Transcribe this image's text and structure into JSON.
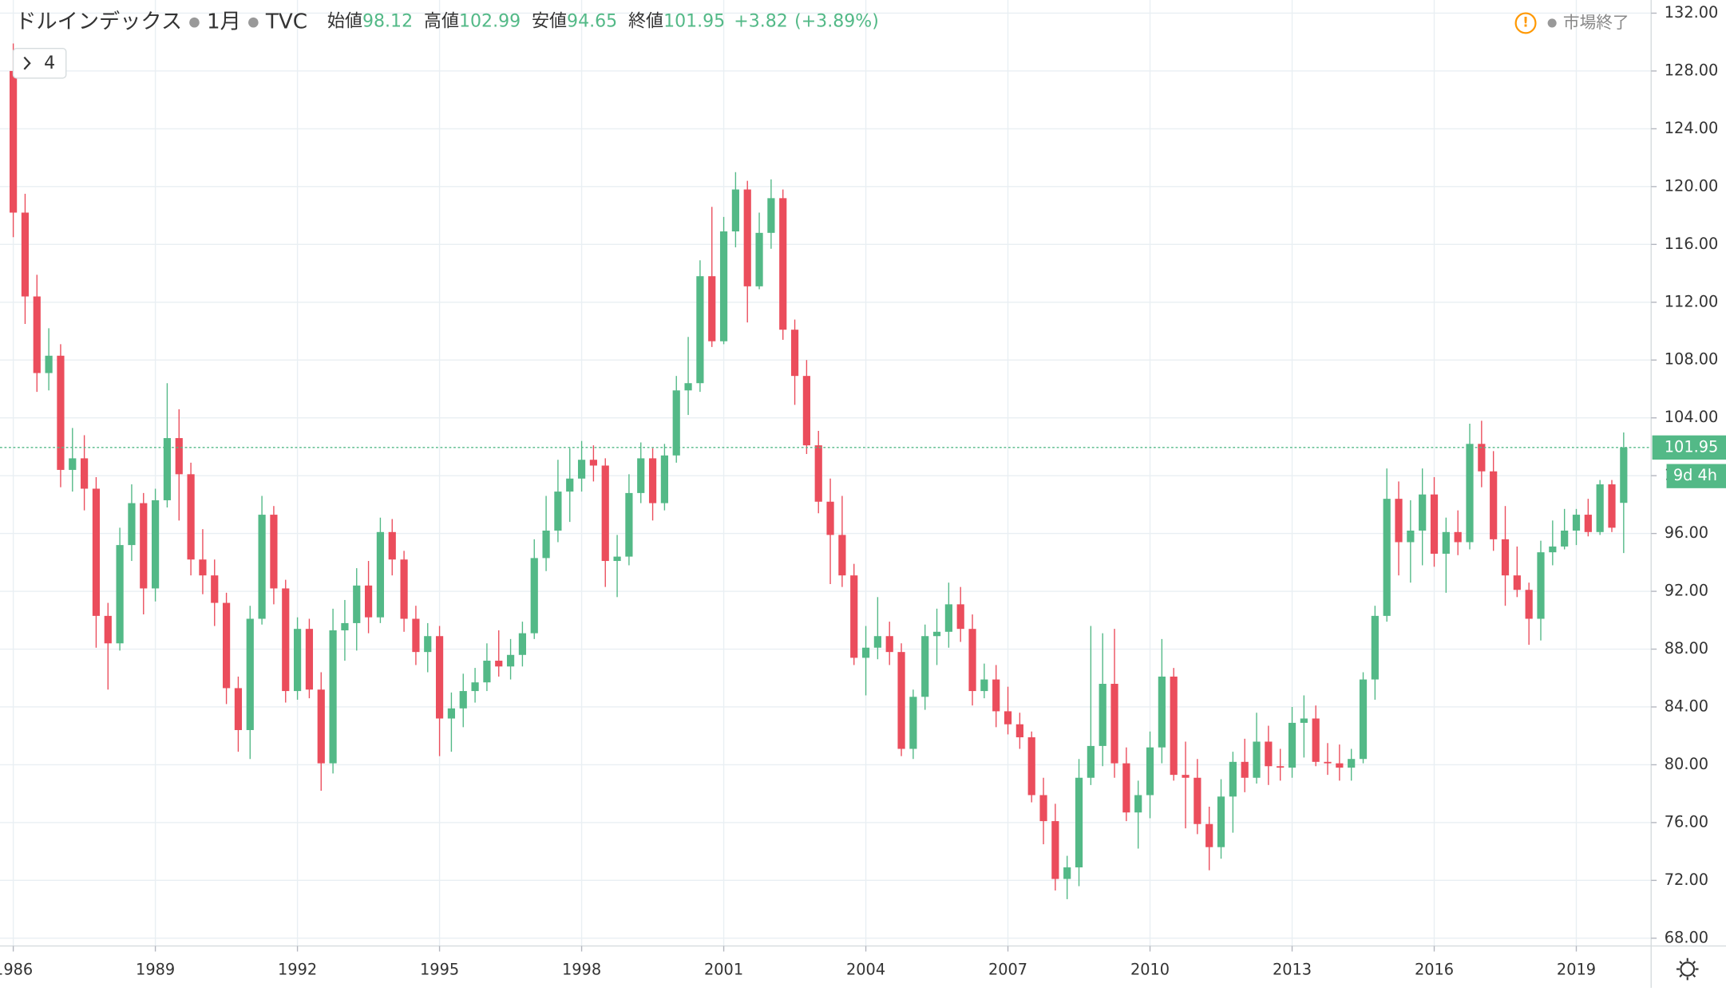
{
  "chart_data": {
    "type": "candlestick",
    "title": "ドルインデックス",
    "interval": "1月",
    "source": "TVC",
    "summary": [
      {
        "label": "始値",
        "value": 98.12
      },
      {
        "label": "高値",
        "value": 102.99
      },
      {
        "label": "安値",
        "value": 94.65
      },
      {
        "label": "終値",
        "value": 101.95
      }
    ],
    "change": "+3.82",
    "change_pct": "(+3.89%)",
    "status": "市場終了",
    "countdown": "9d 4h",
    "study_count": "4",
    "up_color": "#53b987",
    "down_color": "#eb4d5c",
    "grid": true,
    "xlim": [
      1985.72,
      2020.58
    ],
    "ylim": [
      67.46,
      132.91
    ],
    "xticks": [
      1986,
      1989,
      1992,
      1995,
      1998,
      2001,
      2004,
      2007,
      2010,
      2013,
      2016,
      2019
    ],
    "yticks": [
      {
        "value": 68,
        "label": "68.00"
      },
      {
        "value": 72,
        "label": "72.00"
      },
      {
        "value": 76,
        "label": "76.00"
      },
      {
        "value": 80,
        "label": "80.00"
      },
      {
        "value": 84,
        "label": "84.00"
      },
      {
        "value": 88,
        "label": "88.00"
      },
      {
        "value": 92,
        "label": "92.00"
      },
      {
        "value": 96,
        "label": "96.00"
      },
      {
        "value": 100,
        "label": "100.00"
      },
      {
        "value": 104,
        "label": "104.00"
      },
      {
        "value": 108,
        "label": "108.00"
      },
      {
        "value": 112,
        "label": "112.00"
      },
      {
        "value": 116,
        "label": "116.00"
      },
      {
        "value": 120,
        "label": "120.00"
      },
      {
        "value": 124,
        "label": "124.00"
      },
      {
        "value": 128,
        "label": "128.00"
      },
      {
        "value": 132,
        "label": "132.00"
      }
    ],
    "x": [
      1986,
      1986.25,
      1986.5,
      1986.75,
      1987,
      1987.25,
      1987.5,
      1987.75,
      1988,
      1988.25,
      1988.5,
      1988.75,
      1989,
      1989.25,
      1989.5,
      1989.75,
      1990,
      1990.25,
      1990.5,
      1990.75,
      1991,
      1991.25,
      1991.5,
      1991.75,
      1992,
      1992.25,
      1992.5,
      1992.75,
      1993,
      1993.25,
      1993.5,
      1993.75,
      1994,
      1994.25,
      1994.5,
      1994.75,
      1995,
      1995.25,
      1995.5,
      1995.75,
      1996,
      1996.25,
      1996.5,
      1996.75,
      1997,
      1997.25,
      1997.5,
      1997.75,
      1998,
      1998.25,
      1998.5,
      1998.75,
      1999,
      1999.25,
      1999.5,
      1999.75,
      2000,
      2000.25,
      2000.5,
      2000.75,
      2001,
      2001.25,
      2001.5,
      2001.75,
      2002,
      2002.25,
      2002.5,
      2002.75,
      2003,
      2003.25,
      2003.5,
      2003.75,
      2004,
      2004.25,
      2004.5,
      2004.75,
      2005,
      2005.25,
      2005.5,
      2005.75,
      2006,
      2006.25,
      2006.5,
      2006.75,
      2007,
      2007.25,
      2007.5,
      2007.75,
      2008,
      2008.25,
      2008.5,
      2008.75,
      2009,
      2009.25,
      2009.5,
      2009.75,
      2010,
      2010.25,
      2010.5,
      2010.75,
      2011,
      2011.25,
      2011.5,
      2011.75,
      2012,
      2012.25,
      2012.5,
      2012.75,
      2013,
      2013.25,
      2013.5,
      2013.75,
      2014,
      2014.25,
      2014.5,
      2014.75,
      2015,
      2015.25,
      2015.5,
      2015.75,
      2016,
      2016.25,
      2016.5,
      2016.75,
      2017,
      2017.25,
      2017.5,
      2017.75,
      2018,
      2018.25,
      2018.5,
      2018.75,
      2019,
      2019.25,
      2019.5,
      2019.75,
      2020
    ],
    "open": [
      128,
      118.2,
      112.4,
      107.1,
      108.3,
      100.4,
      101.2,
      99.1,
      90.3,
      88.4,
      95.2,
      98.1,
      92.2,
      98.3,
      102.6,
      100.1,
      94.2,
      93.1,
      91.2,
      85.3,
      82.4,
      90.1,
      97.3,
      92.2,
      85.1,
      89.4,
      85.2,
      80.1,
      89.3,
      89.8,
      92.4,
      90.2,
      96.1,
      94.2,
      90.1,
      87.8,
      88.9,
      83.2,
      83.9,
      85.1,
      85.7,
      87.2,
      86.8,
      87.6,
      89.1,
      94.3,
      96.2,
      98.9,
      99.8,
      101.1,
      100.7,
      94.1,
      94.4,
      98.8,
      101.2,
      98.1,
      101.4,
      105.9,
      106.4,
      113.8,
      109.3,
      116.9,
      119.8,
      113.1,
      116.8,
      119.2,
      110.1,
      106.9,
      102.1,
      98.2,
      95.9,
      93.1,
      87.4,
      88.1,
      88.9,
      87.8,
      81.1,
      84.7,
      88.9,
      89.2,
      91.1,
      89.4,
      85.1,
      85.9,
      83.7,
      82.8,
      81.9,
      77.9,
      76.1,
      72.1,
      72.9,
      79.1,
      81.3,
      85.6,
      80.1,
      76.7,
      77.9,
      81.2,
      86.1,
      79.3,
      79.1,
      75.9,
      74.3,
      77.8,
      80.2,
      79.1,
      81.6,
      79.9,
      79.8,
      82.9,
      83.2,
      80.2,
      80.1,
      79.8,
      80.4,
      85.9,
      90.3,
      98.4,
      95.4,
      96.2,
      98.7,
      94.6,
      96.1,
      95.4,
      102.2,
      100.3,
      95.6,
      93.1,
      92.1,
      90.1,
      94.7,
      95.1,
      96.2,
      97.3,
      96.1,
      99.4,
      98.12
    ],
    "high": [
      129.9,
      119.5,
      113.9,
      110.2,
      109.1,
      103.3,
      102.8,
      99.9,
      91.2,
      96.4,
      99.4,
      98.8,
      99.1,
      106.4,
      104.6,
      100.9,
      96.3,
      94.2,
      91.9,
      86.1,
      91.0,
      98.6,
      97.9,
      92.8,
      90.2,
      90.1,
      86.4,
      90.8,
      91.4,
      93.6,
      94.1,
      97.1,
      97.0,
      94.8,
      91.0,
      89.8,
      89.6,
      85.0,
      86.3,
      86.7,
      88.4,
      89.3,
      88.7,
      89.9,
      95.6,
      98.6,
      101.1,
      101.9,
      102.4,
      102.1,
      101.2,
      95.9,
      100.1,
      102.3,
      101.9,
      102.2,
      106.9,
      109.6,
      114.9,
      118.6,
      117.9,
      121.0,
      120.4,
      118.2,
      120.5,
      119.8,
      110.8,
      108.0,
      103.1,
      99.8,
      98.6,
      93.9,
      89.6,
      91.6,
      89.9,
      88.4,
      85.2,
      89.7,
      90.8,
      92.6,
      92.3,
      90.4,
      87.0,
      86.9,
      85.4,
      83.6,
      82.3,
      79.1,
      77.3,
      73.7,
      80.4,
      89.6,
      89.1,
      89.4,
      81.2,
      78.9,
      82.3,
      88.7,
      86.7,
      81.6,
      80.4,
      77.1,
      79.0,
      80.9,
      81.8,
      83.6,
      82.7,
      81.1,
      84.0,
      84.8,
      84.1,
      81.5,
      81.4,
      81.1,
      86.4,
      91.0,
      100.5,
      99.6,
      98.3,
      100.5,
      99.9,
      97.1,
      97.6,
      103.6,
      103.8,
      101.7,
      97.9,
      95.1,
      92.6,
      95.5,
      96.9,
      97.7,
      97.7,
      98.4,
      99.7,
      99.7,
      102.99
    ],
    "low": [
      116.5,
      110.5,
      105.8,
      105.9,
      99.2,
      98.9,
      97.6,
      88.1,
      85.2,
      87.9,
      94.1,
      90.4,
      91.3,
      97.8,
      96.9,
      93.1,
      91.8,
      89.6,
      84.2,
      80.9,
      80.4,
      89.7,
      91.1,
      84.3,
      84.5,
      84.6,
      78.2,
      79.4,
      87.2,
      87.9,
      89.1,
      89.8,
      93.1,
      89.2,
      86.9,
      86.4,
      80.6,
      80.9,
      82.6,
      84.3,
      85.1,
      86.1,
      85.9,
      86.8,
      88.7,
      93.4,
      95.4,
      96.8,
      98.9,
      99.6,
      92.3,
      91.6,
      93.8,
      98.1,
      96.9,
      97.6,
      100.9,
      104.2,
      105.8,
      108.9,
      109.1,
      115.8,
      110.6,
      112.9,
      115.7,
      109.4,
      104.9,
      101.5,
      97.4,
      92.5,
      92.3,
      86.9,
      84.8,
      87.3,
      86.9,
      80.6,
      80.4,
      83.8,
      86.9,
      88.1,
      88.5,
      84.1,
      84.6,
      82.6,
      82.1,
      81.1,
      77.4,
      74.5,
      71.3,
      70.7,
      71.6,
      78.6,
      79.9,
      79.1,
      76.1,
      74.2,
      76.3,
      80.1,
      78.9,
      75.6,
      75.2,
      72.7,
      73.5,
      75.3,
      78.1,
      78.7,
      78.6,
      78.9,
      79.1,
      80.5,
      79.9,
      79.3,
      78.9,
      78.9,
      80.1,
      84.5,
      89.9,
      93.1,
      92.6,
      93.8,
      93.7,
      91.9,
      94.5,
      94.9,
      99.2,
      94.8,
      91.0,
      91.6,
      88.3,
      88.6,
      93.8,
      94.9,
      95.2,
      95.8,
      95.9,
      96.1,
      94.65
    ],
    "close": [
      118.2,
      112.4,
      107.1,
      108.3,
      100.4,
      101.2,
      99.1,
      90.3,
      88.4,
      95.2,
      98.1,
      92.2,
      98.3,
      102.6,
      100.1,
      94.2,
      93.1,
      91.2,
      85.3,
      82.4,
      90.1,
      97.3,
      92.2,
      85.1,
      89.4,
      85.2,
      80.1,
      89.3,
      89.8,
      92.4,
      90.2,
      96.1,
      94.2,
      90.1,
      87.8,
      88.9,
      83.2,
      83.9,
      85.1,
      85.7,
      87.2,
      86.8,
      87.6,
      89.1,
      94.3,
      96.2,
      98.9,
      99.8,
      101.1,
      100.7,
      94.1,
      94.4,
      98.8,
      101.2,
      98.1,
      101.4,
      105.9,
      106.4,
      113.8,
      109.3,
      116.9,
      119.8,
      113.1,
      116.8,
      119.2,
      110.1,
      106.9,
      102.1,
      98.2,
      95.9,
      93.1,
      87.4,
      88.1,
      88.9,
      87.8,
      81.1,
      84.7,
      88.9,
      89.2,
      91.1,
      89.4,
      85.1,
      85.9,
      83.7,
      82.8,
      81.9,
      77.9,
      76.1,
      72.1,
      72.9,
      79.1,
      81.3,
      85.6,
      80.1,
      76.7,
      77.9,
      81.2,
      86.1,
      79.3,
      79.1,
      75.9,
      74.3,
      77.8,
      80.2,
      79.1,
      81.6,
      79.9,
      79.8,
      82.9,
      83.2,
      80.2,
      80.1,
      79.8,
      80.4,
      85.9,
      90.3,
      98.4,
      95.4,
      96.2,
      98.7,
      94.6,
      96.1,
      95.4,
      102.2,
      100.3,
      95.6,
      93.1,
      92.1,
      90.1,
      94.7,
      95.1,
      96.2,
      97.3,
      96.1,
      99.4,
      96.4,
      101.95
    ]
  }
}
